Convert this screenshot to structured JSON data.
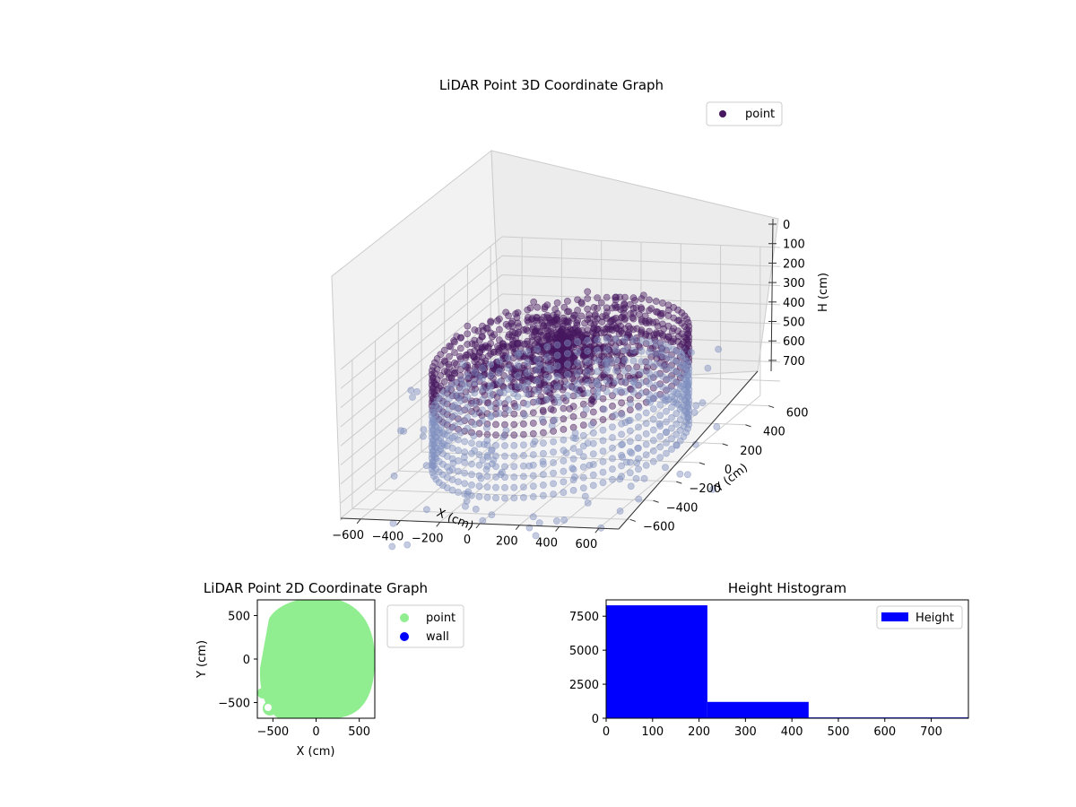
{
  "colors": {
    "point3d_dark": "#46185f",
    "point3d_light": "#7f8fbf",
    "pane_fill": "#f2f2f2",
    "grid": "#cccccc",
    "point2d": "#90ee90",
    "wall": "#0000ff",
    "hist_bar": "#0000ff"
  },
  "chart_data": [
    {
      "type": "scatter",
      "title": "LiDAR Point 3D Coordinate Graph",
      "xlabel": "X (cm)",
      "ylabel": "Y (cm)",
      "zlabel": "H (cm)",
      "xticks": [
        "−600",
        "−400",
        "−200",
        "0",
        "200",
        "400",
        "600"
      ],
      "yticks": [
        "−600",
        "−400",
        "−200",
        "0",
        "200",
        "400",
        "600"
      ],
      "zticks": [
        "0",
        "100",
        "200",
        "300",
        "400",
        "500",
        "600",
        "700"
      ],
      "xlim": [
        -700,
        700
      ],
      "ylim": [
        -700,
        700
      ],
      "zlim": [
        0,
        780
      ],
      "z_axis_inverted": true,
      "legend": {
        "entries": [
          "point"
        ],
        "placement": "top-right"
      },
      "grid": true
    },
    {
      "type": "scatter",
      "title": "LiDAR Point 2D Coordinate Graph",
      "xlabel": "X (cm)",
      "ylabel": "Y (cm)",
      "xticks": [
        "−500",
        "0",
        "500"
      ],
      "yticks": [
        "500",
        "0",
        "−500"
      ],
      "xlim": [
        -680,
        680
      ],
      "ylim": [
        -680,
        680
      ],
      "legend": {
        "entries": [
          "point",
          "wall"
        ],
        "placement": "right"
      },
      "grid": false
    },
    {
      "type": "bar",
      "title": "Height Histogram",
      "xlabel": "",
      "ylabel": "",
      "bins": [
        {
          "start": 0,
          "end": 218,
          "count": 8300
        },
        {
          "start": 218,
          "end": 436,
          "count": 1200
        },
        {
          "start": 436,
          "end": 780,
          "count": 60
        }
      ],
      "xticks": [
        "0",
        "100",
        "200",
        "300",
        "400",
        "500",
        "600",
        "700"
      ],
      "yticks": [
        "0",
        "2500",
        "5000",
        "7500"
      ],
      "xlim": [
        0,
        780
      ],
      "ylim": [
        0,
        8700
      ],
      "legend": {
        "entries": [
          "Height"
        ],
        "placement": "top-right"
      },
      "grid": false
    }
  ]
}
